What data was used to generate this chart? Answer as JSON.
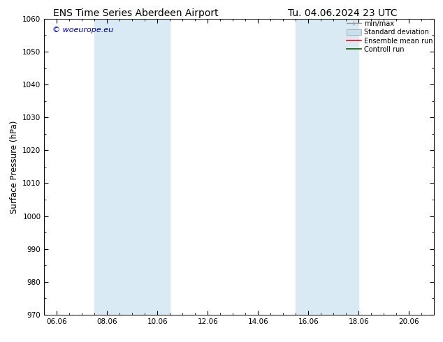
{
  "title_left": "ENS Time Series Aberdeen Airport",
  "title_right": "Tu. 04.06.2024 23 UTC",
  "ylabel": "Surface Pressure (hPa)",
  "ylim": [
    970,
    1060
  ],
  "yticks": [
    970,
    980,
    990,
    1000,
    1010,
    1020,
    1030,
    1040,
    1050,
    1060
  ],
  "xtick_labels": [
    "06.06",
    "08.06",
    "10.06",
    "12.06",
    "14.06",
    "16.06",
    "18.06",
    "20.06"
  ],
  "xtick_positions": [
    0,
    2,
    4,
    6,
    8,
    10,
    12,
    14
  ],
  "xlim": [
    -0.5,
    15.0
  ],
  "shaded_region1": [
    1.5,
    4.5
  ],
  "shaded_region2": [
    9.5,
    12.0
  ],
  "shaded_color": "#daeaf5",
  "watermark": "© woeurope.eu",
  "watermark_color": "#0000bb",
  "bg_color": "#ffffff",
  "legend_labels": [
    "min/max",
    "Standard deviation",
    "Ensemble mean run",
    "Controll run"
  ],
  "legend_colors": [
    "#999999",
    "#c8dff0",
    "#ff0000",
    "#006600"
  ],
  "title_fontsize": 10,
  "tick_fontsize": 7.5,
  "ylabel_fontsize": 8.5,
  "watermark_fontsize": 8,
  "legend_fontsize": 7
}
